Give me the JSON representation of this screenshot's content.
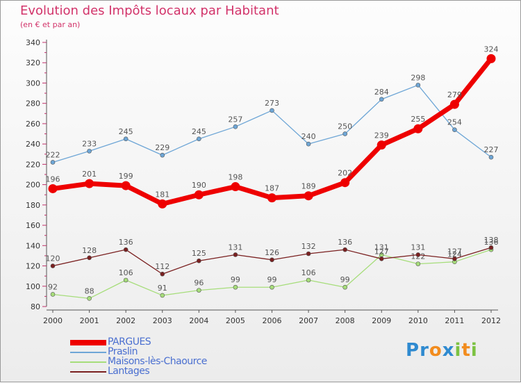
{
  "chart_data": {
    "type": "line",
    "title": "Evolution des Impôts locaux par Habitant",
    "subtitle": "(en € et par an)",
    "xlabel": "",
    "ylabel": "",
    "x": [
      "2000",
      "2001",
      "2002",
      "2003",
      "2004",
      "2005",
      "2006",
      "2007",
      "2008",
      "2009",
      "2010",
      "2011",
      "2012"
    ],
    "ylim": [
      80,
      340
    ],
    "yticks": [
      80,
      100,
      120,
      140,
      160,
      180,
      200,
      220,
      240,
      260,
      280,
      300,
      320,
      340
    ],
    "grid": false,
    "legend_position": "bottom-left",
    "series": [
      {
        "name": "PARGUES",
        "color": "#ee0000",
        "values": [
          196,
          201,
          199,
          181,
          190,
          198,
          187,
          189,
          202,
          239,
          255,
          279,
          324
        ]
      },
      {
        "name": "Praslin",
        "color": "#6ea6d6",
        "values": [
          222,
          233,
          245,
          229,
          245,
          257,
          273,
          240,
          250,
          284,
          298,
          254,
          227
        ]
      },
      {
        "name": "Maisons-lès-Chaource",
        "color": "#a6dd7a",
        "values": [
          92,
          88,
          106,
          91,
          96,
          99,
          99,
          106,
          99,
          131,
          122,
          124,
          136
        ]
      },
      {
        "name": "Lantages",
        "color": "#7a2020",
        "values": [
          120,
          128,
          136,
          112,
          125,
          131,
          126,
          132,
          136,
          127,
          131,
          127,
          138
        ]
      }
    ]
  },
  "logo": {
    "letters": [
      {
        "ch": "P",
        "color": "#2f8ad0"
      },
      {
        "ch": "r",
        "color": "#2f8ad0"
      },
      {
        "ch": "o",
        "color": "#f28c1e"
      },
      {
        "ch": "x",
        "color": "#2f8ad0"
      },
      {
        "ch": "i",
        "color": "#7cc242"
      },
      {
        "ch": "t",
        "color": "#f28c1e"
      },
      {
        "ch": "i",
        "color": "#7cc242"
      }
    ]
  }
}
